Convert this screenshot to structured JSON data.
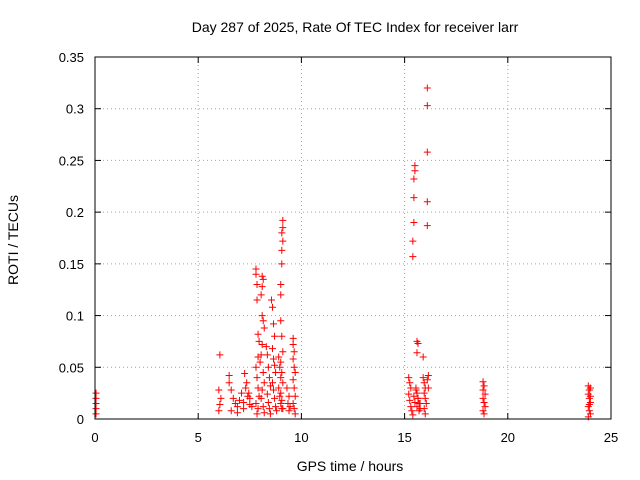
{
  "chart_data": {
    "type": "scatter",
    "title": "Day 287 of 2025, Rate Of TEC Index for receiver larr",
    "xlabel": "GPS time / hours",
    "ylabel": "ROTI / TECUs",
    "xlim": [
      0,
      25
    ],
    "ylim": [
      0,
      0.35
    ],
    "xticks": [
      0,
      5,
      10,
      15,
      20,
      25
    ],
    "xtick_labels": [
      "0",
      "5",
      "10",
      "15",
      "20",
      "25"
    ],
    "yticks": [
      0,
      0.05,
      0.1,
      0.15,
      0.2,
      0.25,
      0.3,
      0.35
    ],
    "ytick_labels": [
      "0",
      "0.05",
      "0.1",
      "0.15",
      "0.2",
      "0.25",
      "0.3",
      "0.35"
    ],
    "grid": true,
    "marker": "+",
    "series": [
      {
        "color": "#ff0000",
        "points": [
          [
            0.05,
            0.025
          ],
          [
            0.05,
            0.015
          ],
          [
            0.05,
            0.01
          ],
          [
            0.05,
            0.005
          ],
          [
            0.05,
            0.02
          ],
          [
            6.05,
            0.062
          ],
          [
            6.0,
            0.028
          ],
          [
            6.05,
            0.014
          ],
          [
            6.0,
            0.008
          ],
          [
            6.1,
            0.02
          ],
          [
            6.5,
            0.042
          ],
          [
            6.5,
            0.035
          ],
          [
            6.6,
            0.028
          ],
          [
            6.7,
            0.02
          ],
          [
            6.8,
            0.015
          ],
          [
            6.9,
            0.012
          ],
          [
            7.0,
            0.018
          ],
          [
            7.1,
            0.025
          ],
          [
            7.2,
            0.01
          ],
          [
            7.3,
            0.03
          ],
          [
            7.4,
            0.022
          ],
          [
            7.5,
            0.014
          ],
          [
            6.6,
            0.008
          ],
          [
            6.9,
            0.006
          ],
          [
            7.2,
            0.016
          ],
          [
            7.25,
            0.044
          ],
          [
            7.35,
            0.035
          ],
          [
            7.45,
            0.025
          ],
          [
            7.5,
            0.02
          ],
          [
            7.6,
            0.012
          ],
          [
            7.8,
            0.145
          ],
          [
            7.8,
            0.14
          ],
          [
            7.85,
            0.13
          ],
          [
            7.85,
            0.115
          ],
          [
            7.9,
            0.082
          ],
          [
            7.95,
            0.075
          ],
          [
            7.9,
            0.06
          ],
          [
            7.8,
            0.05
          ],
          [
            7.85,
            0.04
          ],
          [
            7.9,
            0.03
          ],
          [
            7.95,
            0.022
          ],
          [
            7.8,
            0.015
          ],
          [
            7.9,
            0.01
          ],
          [
            7.85,
            0.005
          ],
          [
            8.1,
            0.138
          ],
          [
            8.15,
            0.135
          ],
          [
            8.1,
            0.128
          ],
          [
            8.05,
            0.12
          ],
          [
            8.1,
            0.1
          ],
          [
            8.15,
            0.095
          ],
          [
            8.2,
            0.088
          ],
          [
            8.1,
            0.072
          ],
          [
            8.05,
            0.062
          ],
          [
            8.0,
            0.055
          ],
          [
            8.15,
            0.045
          ],
          [
            8.2,
            0.035
          ],
          [
            8.1,
            0.028
          ],
          [
            8.05,
            0.02
          ],
          [
            8.15,
            0.012
          ],
          [
            8.2,
            0.006
          ],
          [
            8.3,
            0.07
          ],
          [
            8.35,
            0.062
          ],
          [
            8.4,
            0.05
          ],
          [
            8.45,
            0.04
          ],
          [
            8.5,
            0.032
          ],
          [
            8.35,
            0.024
          ],
          [
            8.4,
            0.016
          ],
          [
            8.45,
            0.01
          ],
          [
            8.5,
            0.005
          ],
          [
            8.55,
            0.115
          ],
          [
            8.6,
            0.108
          ],
          [
            8.65,
            0.092
          ],
          [
            8.7,
            0.08
          ],
          [
            8.6,
            0.068
          ],
          [
            8.65,
            0.058
          ],
          [
            8.7,
            0.052
          ],
          [
            8.75,
            0.045
          ],
          [
            8.6,
            0.035
          ],
          [
            8.65,
            0.028
          ],
          [
            8.7,
            0.02
          ],
          [
            8.75,
            0.012
          ],
          [
            8.8,
            0.008
          ],
          [
            8.9,
            0.06
          ],
          [
            8.95,
            0.05
          ],
          [
            9.0,
            0.04
          ],
          [
            8.9,
            0.03
          ],
          [
            8.95,
            0.022
          ],
          [
            9.0,
            0.015
          ],
          [
            9.05,
            0.01
          ],
          [
            9.1,
            0.192
          ],
          [
            9.1,
            0.185
          ],
          [
            9.05,
            0.18
          ],
          [
            9.1,
            0.172
          ],
          [
            9.05,
            0.163
          ],
          [
            9.05,
            0.15
          ],
          [
            9.0,
            0.13
          ],
          [
            9.0,
            0.12
          ],
          [
            9.0,
            0.095
          ],
          [
            9.05,
            0.08
          ],
          [
            9.1,
            0.065
          ],
          [
            9.0,
            0.055
          ],
          [
            9.05,
            0.045
          ],
          [
            9.1,
            0.035
          ],
          [
            9.0,
            0.025
          ],
          [
            9.05,
            0.018
          ],
          [
            9.1,
            0.01
          ],
          [
            9.3,
            0.03
          ],
          [
            9.4,
            0.022
          ],
          [
            9.35,
            0.015
          ],
          [
            9.45,
            0.012
          ],
          [
            9.4,
            0.008
          ],
          [
            9.6,
            0.078
          ],
          [
            9.6,
            0.072
          ],
          [
            9.65,
            0.065
          ],
          [
            9.6,
            0.058
          ],
          [
            9.65,
            0.05
          ],
          [
            9.7,
            0.045
          ],
          [
            9.6,
            0.038
          ],
          [
            9.65,
            0.03
          ],
          [
            9.7,
            0.022
          ],
          [
            9.6,
            0.015
          ],
          [
            9.65,
            0.01
          ],
          [
            9.7,
            0.005
          ],
          [
            15.2,
            0.04
          ],
          [
            15.25,
            0.035
          ],
          [
            15.3,
            0.03
          ],
          [
            15.2,
            0.024
          ],
          [
            15.25,
            0.018
          ],
          [
            15.3,
            0.012
          ],
          [
            15.35,
            0.008
          ],
          [
            15.4,
            0.004
          ],
          [
            15.45,
            0.022
          ],
          [
            15.5,
            0.016
          ],
          [
            15.55,
            0.028
          ],
          [
            15.6,
            0.012
          ],
          [
            15.65,
            0.02
          ],
          [
            15.7,
            0.008
          ],
          [
            15.75,
            0.015
          ],
          [
            15.5,
            0.245
          ],
          [
            15.5,
            0.24
          ],
          [
            15.45,
            0.232
          ],
          [
            15.45,
            0.214
          ],
          [
            15.45,
            0.19
          ],
          [
            15.4,
            0.172
          ],
          [
            15.4,
            0.157
          ],
          [
            15.6,
            0.075
          ],
          [
            15.65,
            0.073
          ],
          [
            15.6,
            0.064
          ],
          [
            15.55,
            0.03
          ],
          [
            15.6,
            0.025
          ],
          [
            15.65,
            0.02
          ],
          [
            15.7,
            0.015
          ],
          [
            15.75,
            0.01
          ],
          [
            15.9,
            0.06
          ],
          [
            15.9,
            0.04
          ],
          [
            15.95,
            0.035
          ],
          [
            16.0,
            0.03
          ],
          [
            15.95,
            0.025
          ],
          [
            16.0,
            0.02
          ],
          [
            16.05,
            0.015
          ],
          [
            15.95,
            0.01
          ],
          [
            16.0,
            0.005
          ],
          [
            16.1,
            0.32
          ],
          [
            16.1,
            0.303
          ],
          [
            16.1,
            0.258
          ],
          [
            16.1,
            0.21
          ],
          [
            16.1,
            0.187
          ],
          [
            16.15,
            0.042
          ],
          [
            16.1,
            0.038
          ],
          [
            16.15,
            0.03
          ],
          [
            18.8,
            0.036
          ],
          [
            18.85,
            0.032
          ],
          [
            18.8,
            0.028
          ],
          [
            18.9,
            0.024
          ],
          [
            18.8,
            0.02
          ],
          [
            18.85,
            0.016
          ],
          [
            18.9,
            0.012
          ],
          [
            18.8,
            0.008
          ],
          [
            18.85,
            0.005
          ],
          [
            23.9,
            0.032
          ],
          [
            23.95,
            0.028
          ],
          [
            24.0,
            0.03
          ],
          [
            23.9,
            0.024
          ],
          [
            23.95,
            0.02
          ],
          [
            24.0,
            0.016
          ],
          [
            23.9,
            0.012
          ],
          [
            23.95,
            0.008
          ],
          [
            24.0,
            0.005
          ],
          [
            23.9,
            0.002
          ],
          [
            24.0,
            0.022
          ],
          [
            23.95,
            0.014
          ]
        ]
      }
    ]
  }
}
